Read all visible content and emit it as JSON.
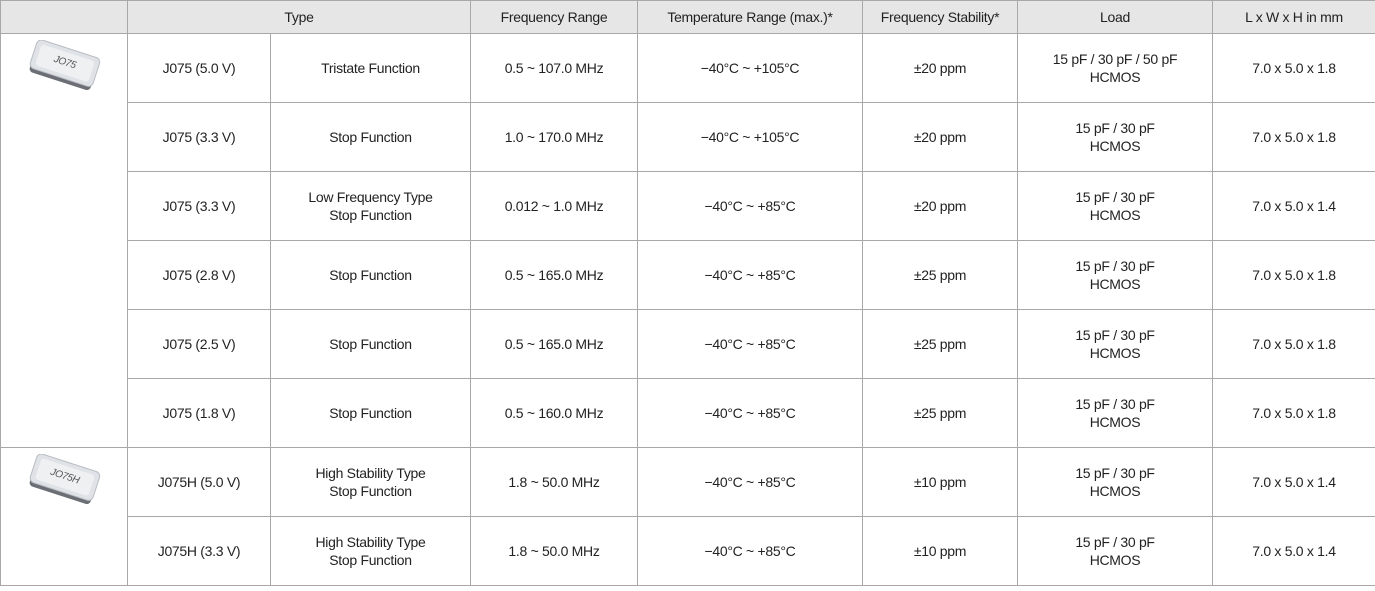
{
  "table": {
    "header": [
      "Type",
      "Frequency Range",
      "Temperature Range (max.)*",
      "Frequency Stability*",
      "Load",
      "L x W x H in mm"
    ],
    "groups": [
      {
        "image": "JO75",
        "rows": [
          [
            "J075 (5.0 V)",
            "Tristate Function",
            "0.5 ~ 107.0 MHz",
            "−40°C ~ +105°C",
            "±20 ppm",
            [
              "15 pF / 30 pF / 50 pF",
              "HCMOS"
            ],
            "7.0 x 5.0 x 1.8"
          ],
          [
            "J075 (3.3 V)",
            "Stop Function",
            "1.0 ~ 170.0 MHz",
            "−40°C ~ +105°C",
            "±20 ppm",
            [
              "15 pF / 30 pF",
              "HCMOS"
            ],
            "7.0 x 5.0 x 1.8"
          ],
          [
            "J075 (3.3 V)",
            [
              "Low Frequency Type",
              "Stop Function"
            ],
            "0.012 ~ 1.0 MHz",
            "−40°C ~ +85°C",
            "±20 ppm",
            [
              "15 pF / 30 pF",
              "HCMOS"
            ],
            "7.0 x 5.0 x 1.4"
          ],
          [
            "J075 (2.8 V)",
            "Stop Function",
            "0.5 ~ 165.0 MHz",
            "−40°C ~ +85°C",
            "±25 ppm",
            [
              "15 pF / 30 pF",
              "HCMOS"
            ],
            "7.0 x 5.0 x 1.8"
          ],
          [
            "J075 (2.5 V)",
            "Stop Function",
            "0.5 ~ 165.0 MHz",
            "−40°C ~ +85°C",
            "±25 ppm",
            [
              "15 pF / 30 pF",
              "HCMOS"
            ],
            "7.0 x 5.0 x 1.8"
          ],
          [
            "J075 (1.8 V)",
            "Stop Function",
            "0.5 ~ 160.0 MHz",
            "−40°C ~ +85°C",
            "±25 ppm",
            [
              "15 pF / 30 pF",
              "HCMOS"
            ],
            "7.0 x 5.0 x 1.8"
          ]
        ]
      },
      {
        "image": "JO75H",
        "rows": [
          [
            "J075H (5.0 V)",
            [
              "High Stability Type",
              "Stop Function"
            ],
            "1.8 ~ 50.0 MHz",
            "−40°C ~ +85°C",
            "±10 ppm",
            [
              "15 pF / 30 pF",
              "HCMOS"
            ],
            "7.0 x 5.0 x 1.4"
          ],
          [
            "J075H (3.3 V)",
            [
              "High Stability Type",
              "Stop Function"
            ],
            "1.8 ~ 50.0 MHz",
            "−40°C ~ +85°C",
            "±10 ppm",
            [
              "15 pF / 30 pF",
              "HCMOS"
            ],
            "7.0 x 5.0 x 1.4"
          ]
        ]
      }
    ]
  }
}
